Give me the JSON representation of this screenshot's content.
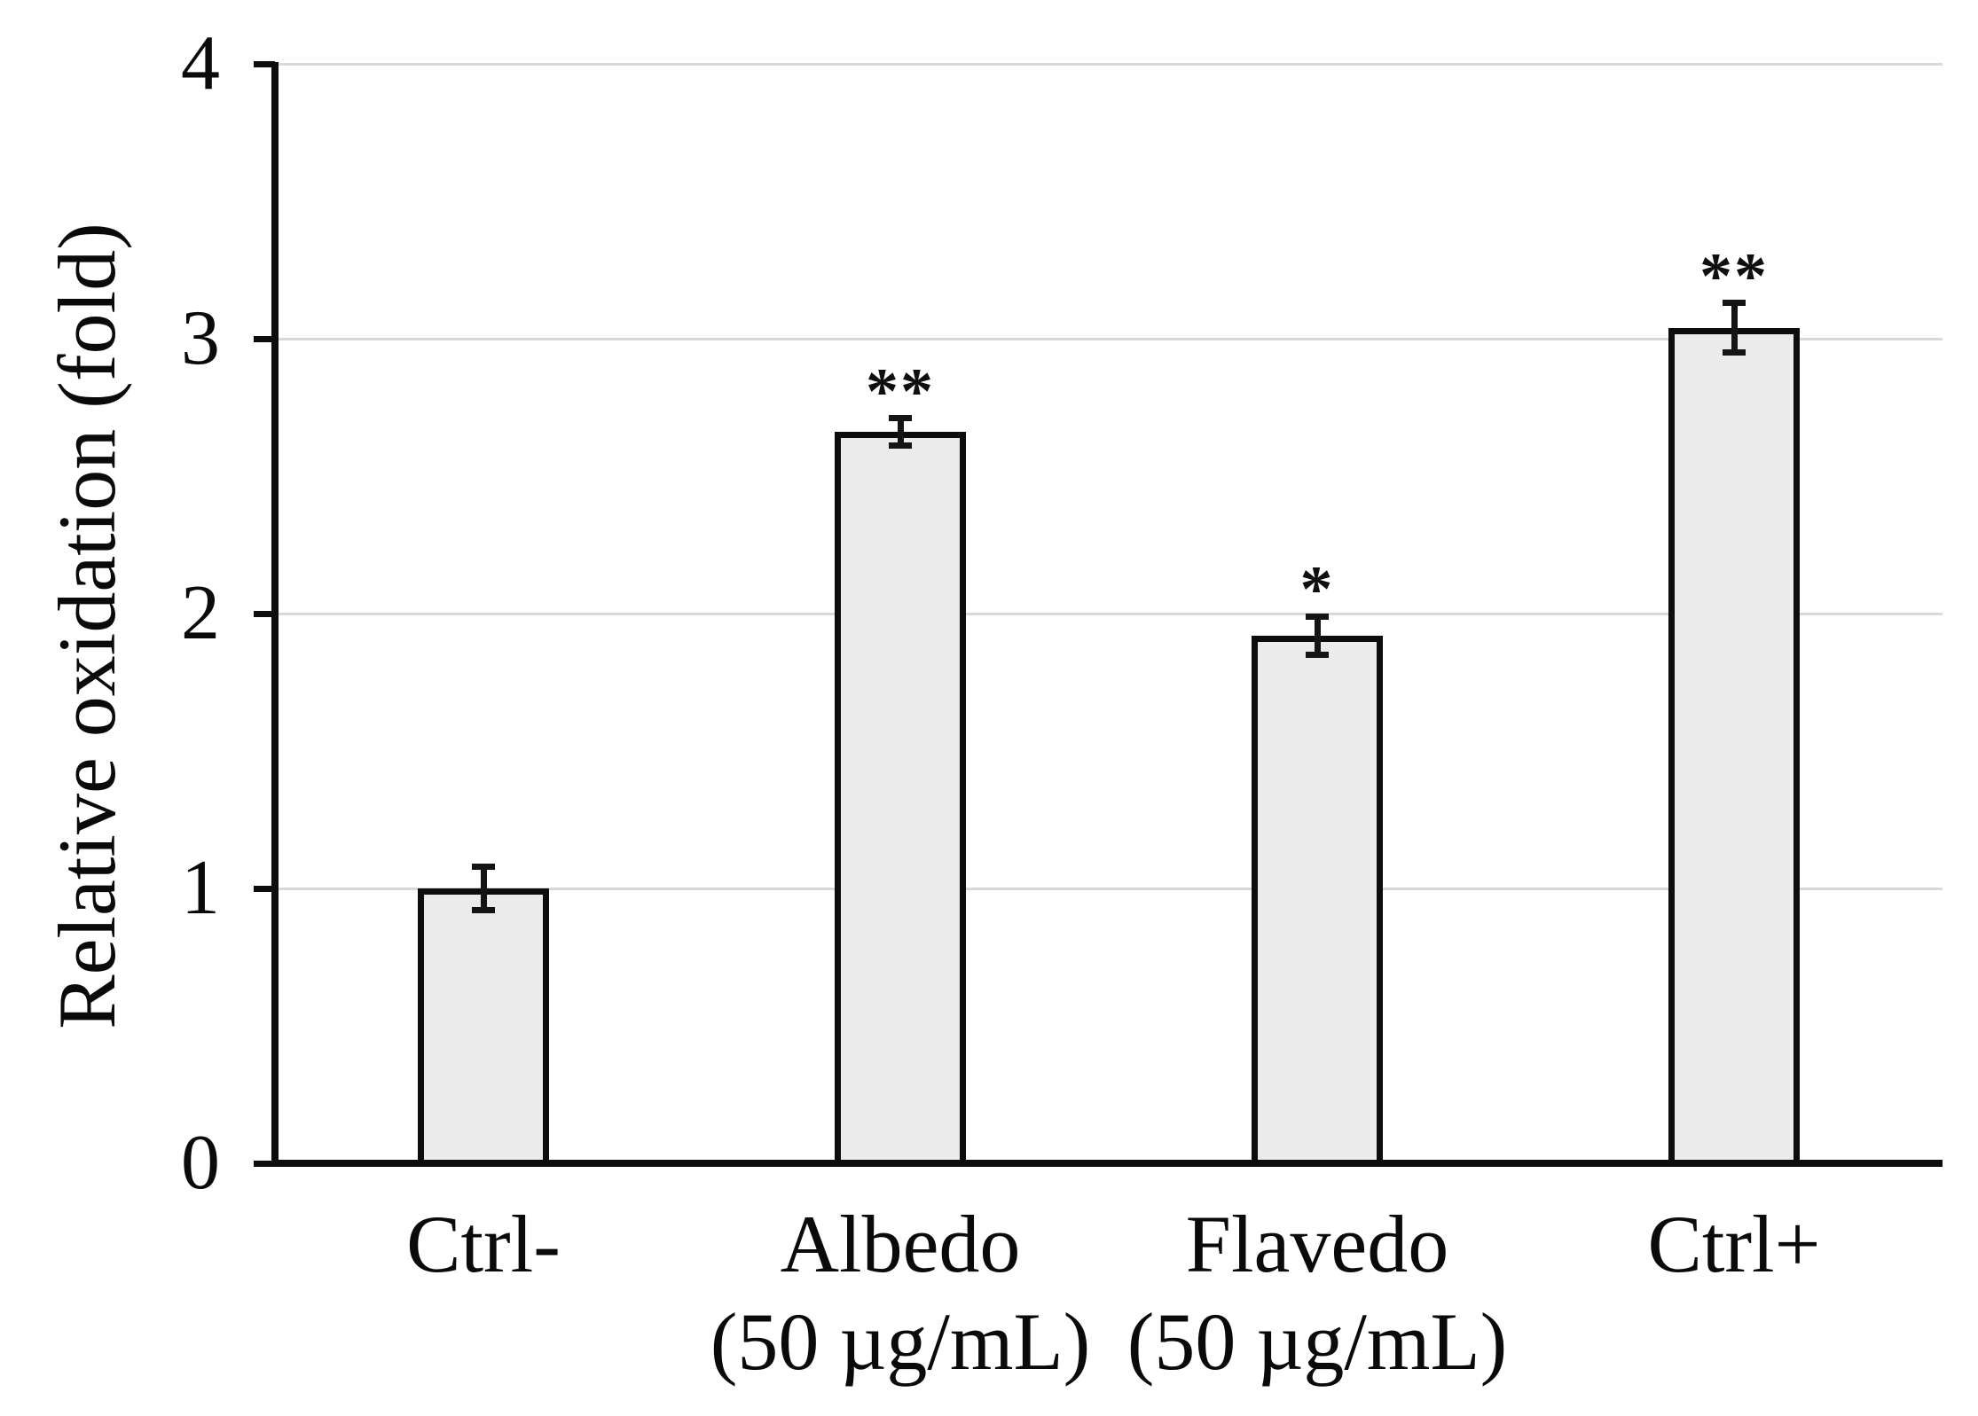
{
  "chart_data": {
    "type": "bar",
    "title": "",
    "xlabel": "",
    "ylabel": "Relative oxidation (fold)",
    "ylim": [
      0,
      4
    ],
    "yticks": [
      "0",
      "1",
      "2",
      "3",
      "4"
    ],
    "grid": true,
    "legend_position": "none",
    "bar_fill_color": "#ebebeb",
    "bar_border_color": "#0d0d0d",
    "gridline_color": "#d9d9d9",
    "categories": [
      "Ctrl-",
      "Albedo (50 µg/mL)",
      "Flavedo (50 µg/mL)",
      "Ctrl+"
    ],
    "x_tick_label_lines": [
      [
        "Ctrl-"
      ],
      [
        "Albedo",
        "(50 µg/mL)"
      ],
      [
        "Flavedo",
        "(50 µg/mL)"
      ],
      [
        "Ctrl+"
      ]
    ],
    "series": [
      {
        "name": "Relative oxidation (fold)",
        "values": [
          1.0,
          2.66,
          1.92,
          3.04
        ],
        "errors": [
          0.08,
          0.05,
          0.07,
          0.09
        ],
        "significance": [
          "",
          "**",
          "*",
          "**"
        ]
      }
    ]
  }
}
